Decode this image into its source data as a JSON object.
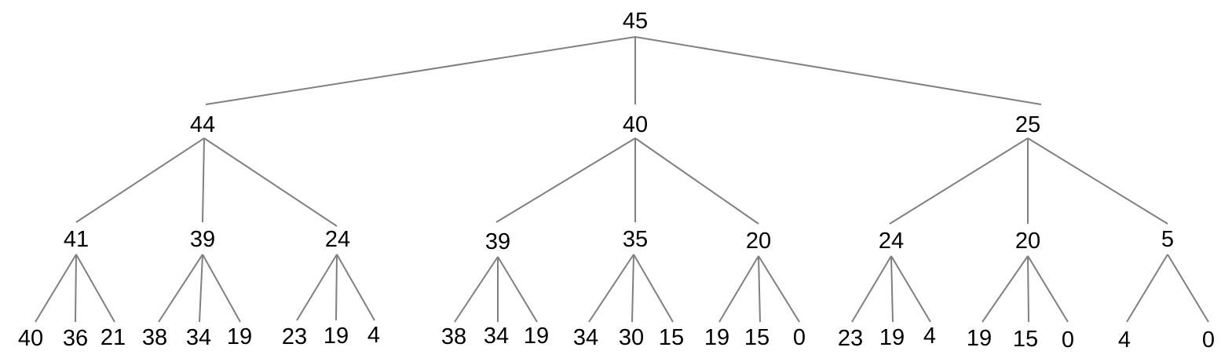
{
  "tree": {
    "root": {
      "value": "45",
      "children": [
        {
          "value": "44",
          "children": [
            {
              "value": "41",
              "children": [
                {
                  "value": "40"
                },
                {
                  "value": "36"
                },
                {
                  "value": "21"
                }
              ]
            },
            {
              "value": "39",
              "children": [
                {
                  "value": "38"
                },
                {
                  "value": "34"
                },
                {
                  "value": "19"
                }
              ]
            },
            {
              "value": "24",
              "children": [
                {
                  "value": "23"
                },
                {
                  "value": "19"
                },
                {
                  "value": "4"
                }
              ]
            }
          ]
        },
        {
          "value": "40",
          "children": [
            {
              "value": "39",
              "children": [
                {
                  "value": "38"
                },
                {
                  "value": "34"
                },
                {
                  "value": "19"
                }
              ]
            },
            {
              "value": "35",
              "children": [
                {
                  "value": "34"
                },
                {
                  "value": "30"
                },
                {
                  "value": "15"
                }
              ]
            },
            {
              "value": "20",
              "children": [
                {
                  "value": "19"
                },
                {
                  "value": "15"
                },
                {
                  "value": "0"
                }
              ]
            }
          ]
        },
        {
          "value": "25",
          "children": [
            {
              "value": "24",
              "children": [
                {
                  "value": "23"
                },
                {
                  "value": "19"
                },
                {
                  "value": "4"
                }
              ]
            },
            {
              "value": "20",
              "children": [
                {
                  "value": "19"
                },
                {
                  "value": "15"
                },
                {
                  "value": "0"
                }
              ]
            },
            {
              "value": "5",
              "children": [
                {
                  "value": "4"
                },
                {
                  "value": "0"
                }
              ]
            }
          ]
        }
      ]
    }
  }
}
